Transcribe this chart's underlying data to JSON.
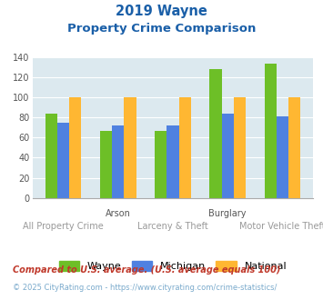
{
  "title_line1": "2019 Wayne",
  "title_line2": "Property Crime Comparison",
  "category_labels_top": [
    "",
    "Arson",
    "",
    "Burglary",
    ""
  ],
  "category_labels_bottom": [
    "All Property Crime",
    "",
    "Larceny & Theft",
    "",
    "Motor Vehicle Theft"
  ],
  "wayne_values": [
    84,
    67,
    67,
    128,
    133
  ],
  "michigan_values": [
    75,
    72,
    72,
    84,
    81
  ],
  "national_values": [
    100,
    100,
    100,
    100,
    100
  ],
  "wayne_color": "#6dbf27",
  "michigan_color": "#4f81e0",
  "national_color": "#ffb732",
  "bg_color": "#dce9ef",
  "ylim": [
    0,
    140
  ],
  "yticks": [
    0,
    20,
    40,
    60,
    80,
    100,
    120,
    140
  ],
  "legend_labels": [
    "Wayne",
    "Michigan",
    "National"
  ],
  "footnote1": "Compared to U.S. average. (U.S. average equals 100)",
  "footnote2": "© 2025 CityRating.com - https://www.cityrating.com/crime-statistics/",
  "title_color": "#1a5fa8",
  "footnote1_color": "#c0392b",
  "footnote2_color": "#7aaacc"
}
